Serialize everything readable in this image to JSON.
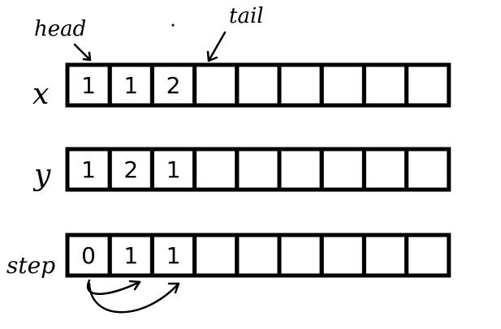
{
  "labels": {
    "head": "head",
    "tail": "tail"
  },
  "rows": [
    {
      "name": "x",
      "values": [
        "1",
        "1",
        "2"
      ]
    },
    {
      "name": "y",
      "values": [
        "1",
        "2",
        "1"
      ]
    },
    {
      "name": "step",
      "values": [
        "0",
        "1",
        "1"
      ]
    }
  ],
  "cell_count": 9,
  "colors": {
    "stroke": "#000000",
    "background": "#ffffff"
  }
}
